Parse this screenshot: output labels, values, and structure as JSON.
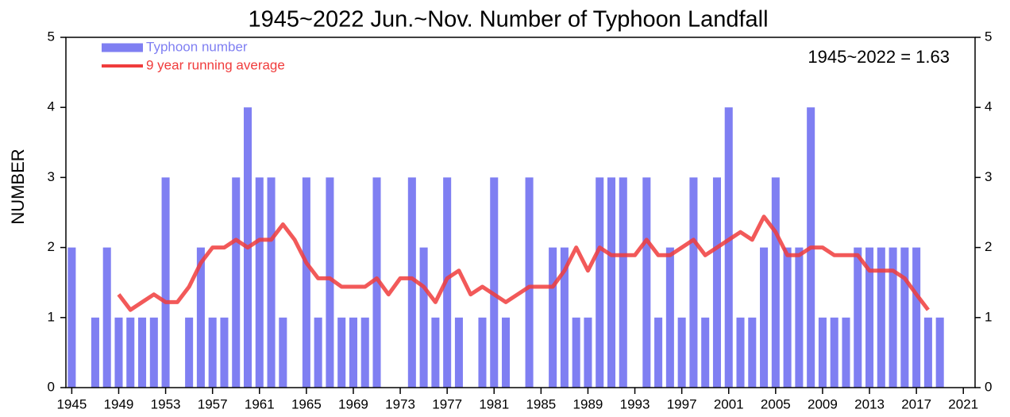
{
  "chart_data": {
    "type": "bar",
    "title": "1945~2022 Jun.~Nov. Number of Typhoon Landfall",
    "y_label": "NUMBER",
    "annotation": "1945~2022 =  1.63",
    "x": [
      1945,
      1946,
      1947,
      1948,
      1949,
      1950,
      1951,
      1952,
      1953,
      1954,
      1955,
      1956,
      1957,
      1958,
      1959,
      1960,
      1961,
      1962,
      1963,
      1964,
      1965,
      1966,
      1967,
      1968,
      1969,
      1970,
      1971,
      1972,
      1973,
      1974,
      1975,
      1976,
      1977,
      1978,
      1979,
      1980,
      1981,
      1982,
      1983,
      1984,
      1985,
      1986,
      1987,
      1988,
      1989,
      1990,
      1991,
      1992,
      1993,
      1994,
      1995,
      1996,
      1997,
      1998,
      1999,
      2000,
      2001,
      2002,
      2003,
      2004,
      2005,
      2006,
      2007,
      2008,
      2009,
      2010,
      2011,
      2012,
      2013,
      2014,
      2015,
      2016,
      2017,
      2018,
      2019,
      2020,
      2021,
      2022
    ],
    "series": [
      {
        "name": "Typhoon number",
        "type": "bar",
        "color": "#7f7ff2",
        "values": [
          2,
          0,
          1,
          2,
          1,
          1,
          1,
          1,
          3,
          0,
          1,
          2,
          1,
          1,
          3,
          4,
          3,
          3,
          1,
          0,
          3,
          1,
          3,
          1,
          1,
          1,
          3,
          0,
          0,
          3,
          2,
          1,
          3,
          1,
          0,
          1,
          3,
          1,
          0,
          3,
          0,
          2,
          2,
          1,
          1,
          3,
          3,
          3,
          0,
          3,
          1,
          2,
          1,
          3,
          1,
          3,
          4,
          1,
          1,
          2,
          3,
          2,
          2,
          4,
          1,
          1,
          1,
          2,
          2,
          2,
          2,
          2,
          2,
          1,
          1,
          0,
          0,
          0
        ]
      },
      {
        "name": "9 year running average",
        "type": "line",
        "color": "#f03c3c",
        "values": [
          null,
          null,
          null,
          null,
          1.33,
          1.11,
          1.22,
          1.33,
          1.22,
          1.22,
          1.44,
          1.78,
          2,
          2,
          2.11,
          2,
          2.11,
          2.11,
          2.33,
          2.11,
          1.78,
          1.56,
          1.56,
          1.44,
          1.44,
          1.44,
          1.56,
          1.33,
          1.56,
          1.56,
          1.44,
          1.22,
          1.56,
          1.67,
          1.33,
          1.44,
          1.33,
          1.22,
          1.33,
          1.44,
          1.44,
          1.44,
          1.67,
          2,
          1.67,
          2,
          1.89,
          1.89,
          1.89,
          2.11,
          1.89,
          1.89,
          2,
          2.11,
          1.89,
          2,
          2.11,
          2.22,
          2.11,
          2.44,
          2.22,
          1.89,
          1.89,
          2,
          2,
          1.89,
          1.89,
          1.89,
          1.67,
          1.67,
          1.67,
          1.56,
          1.33,
          1.11,
          null,
          null,
          null,
          null
        ]
      }
    ],
    "xlim": [
      1944.5,
      2022
    ],
    "xticks": [
      1945,
      1949,
      1953,
      1957,
      1961,
      1965,
      1969,
      1973,
      1977,
      1981,
      1985,
      1989,
      1993,
      1997,
      2001,
      2005,
      2009,
      2013,
      2017,
      2021
    ],
    "ylim": [
      0,
      5
    ],
    "yticks": [
      0,
      1,
      2,
      3,
      4,
      5
    ],
    "y2lim": [
      0,
      5
    ],
    "y2ticks": [
      0,
      1,
      2,
      3,
      4,
      5
    ]
  }
}
